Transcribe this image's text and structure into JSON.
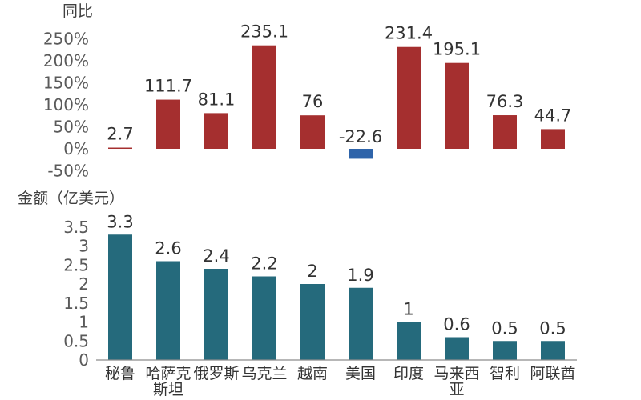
{
  "chart_data": [
    {
      "type": "bar",
      "ylabel": "同比",
      "y_ticks": [
        "250%",
        "200%",
        "150%",
        "100%",
        "50%",
        "0%",
        "-50%"
      ],
      "ylim": [
        -50,
        250
      ],
      "categories": [
        "秘鲁",
        "哈萨克斯坦",
        "俄罗斯",
        "乌克兰",
        "越南",
        "美国",
        "印度",
        "马来西亚",
        "智利",
        "阿联酋"
      ],
      "values": [
        2.7,
        111.7,
        81.1,
        235.1,
        76,
        -22.6,
        231.4,
        195.1,
        76.3,
        44.7
      ],
      "labels": [
        "2.7",
        "111.7",
        "81.1",
        "235.1",
        "76",
        "-22.6",
        "231.4",
        "195.1",
        "76.3",
        "44.7"
      ],
      "colors": {
        "positive": "#a52f2f",
        "negative": "#2e64aa"
      }
    },
    {
      "type": "bar",
      "ylabel": "金额（亿美元）",
      "y_ticks": [
        "3.5",
        "3",
        "2.5",
        "2",
        "1.5",
        "1",
        "0.5",
        "0"
      ],
      "ylim": [
        0,
        3.5
      ],
      "categories": [
        "秘鲁",
        "哈萨克斯坦",
        "俄罗斯",
        "乌克兰",
        "越南",
        "美国",
        "印度",
        "马来西亚",
        "智利",
        "阿联酋"
      ],
      "category_lines": [
        [
          "秘鲁"
        ],
        [
          "哈萨克",
          "斯坦"
        ],
        [
          "俄罗斯"
        ],
        [
          "乌克兰"
        ],
        [
          "越南"
        ],
        [
          "美国"
        ],
        [
          "印度"
        ],
        [
          "马来西",
          "亚"
        ],
        [
          "智利"
        ],
        [
          "阿联酋"
        ]
      ],
      "values": [
        3.3,
        2.6,
        2.4,
        2.2,
        2,
        1.9,
        1,
        0.6,
        0.5,
        0.5
      ],
      "labels": [
        "3.3",
        "2.6",
        "2.4",
        "2.2",
        "2",
        "1.9",
        "1",
        "0.6",
        "0.5",
        "0.5"
      ],
      "colors": {
        "bar": "#256a7c",
        "axis": "#8c8c8c"
      }
    }
  ]
}
